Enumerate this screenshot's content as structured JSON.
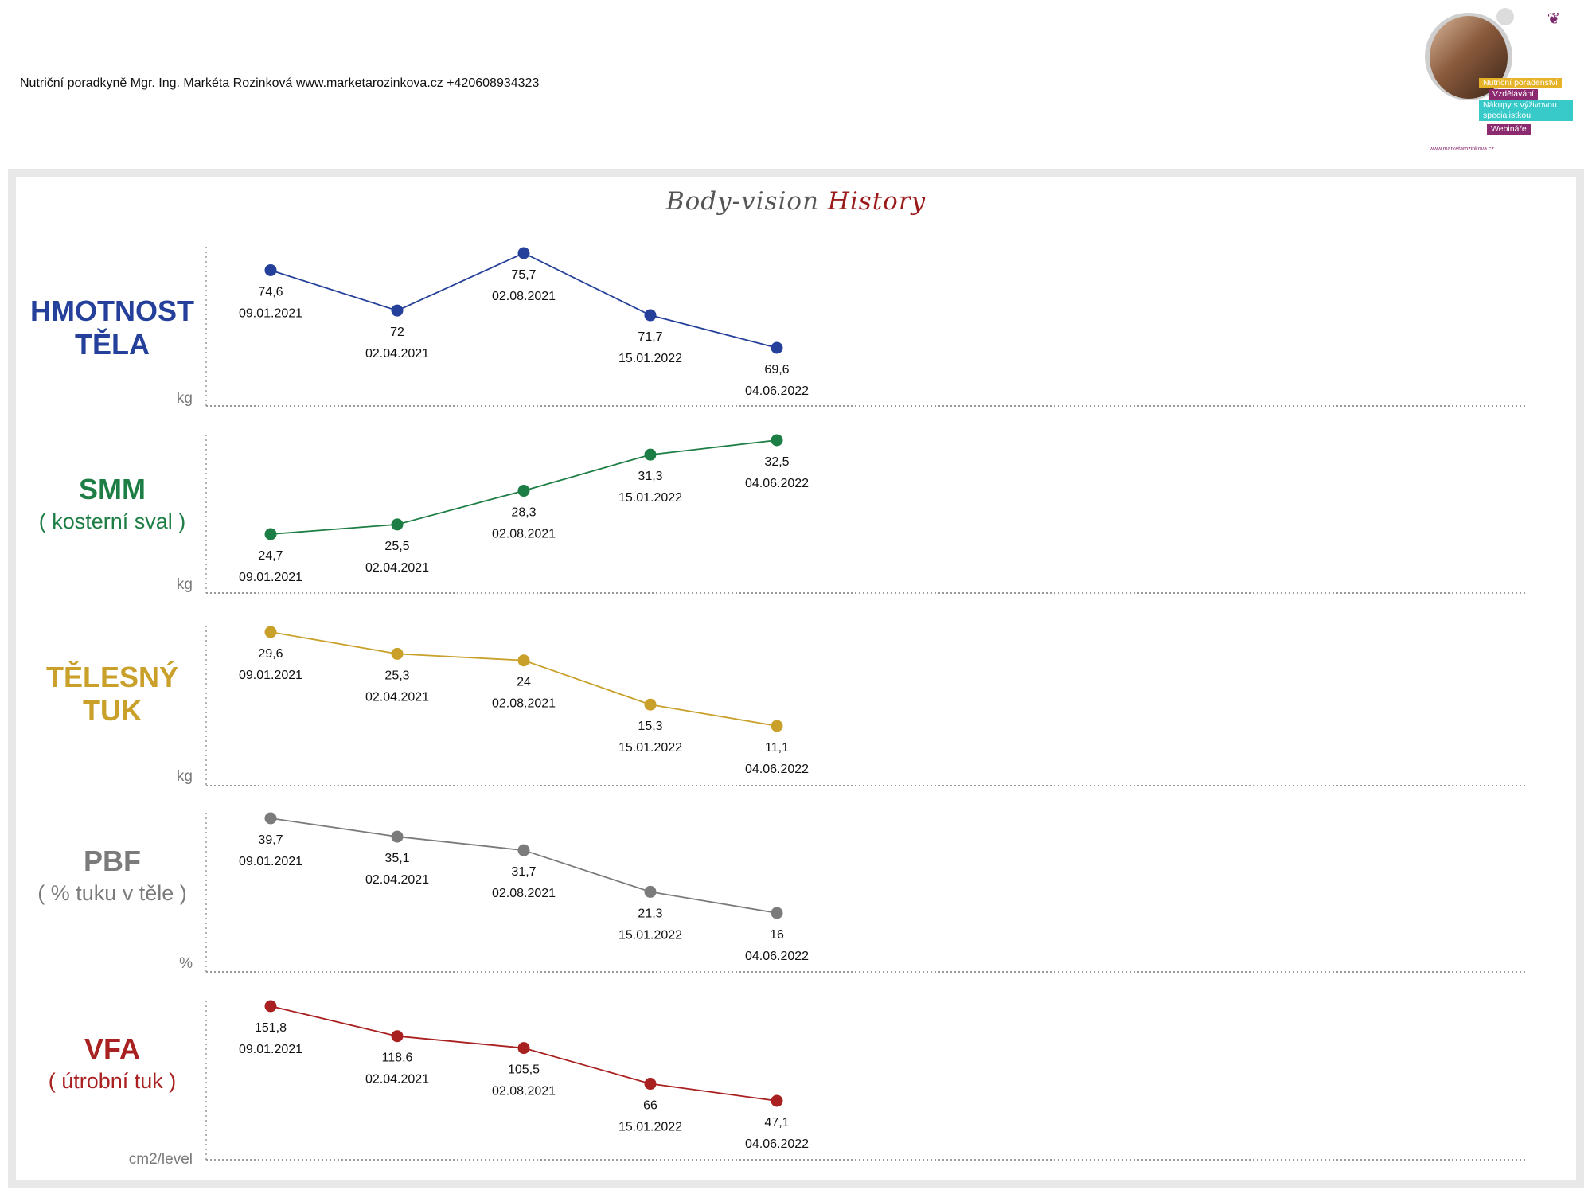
{
  "header": {
    "contact": "Nutriční poradkyně Mgr. Ing. Markéta Rozinková www.marketarozinkova.cz +420608934323"
  },
  "logo": {
    "tags": [
      "Nutriční poradenství",
      "Vzdělávání",
      "Nákupy s výživovou specialistkou",
      "Webináře"
    ],
    "website": "www.marketarozinkova.cz"
  },
  "title": {
    "part1": "Body-vision",
    "part2": "History"
  },
  "chart_data": [
    {
      "type": "line",
      "label_line1": "HMOTNOST",
      "label_line2": "TĚLA",
      "unit": "kg",
      "color": "#24409a",
      "x": [
        "09.01.2021",
        "02.04.2021",
        "02.08.2021",
        "15.01.2022",
        "04.06.2022"
      ],
      "values": [
        74.6,
        72,
        75.7,
        71.7,
        69.6
      ],
      "value_labels": [
        "74,6",
        "72",
        "75,7",
        "71,7",
        "69,6"
      ]
    },
    {
      "type": "line",
      "label_line1": "SMM",
      "label_line2": "( kosterní sval )",
      "unit": "kg",
      "color": "#1d7e45",
      "x": [
        "09.01.2021",
        "02.04.2021",
        "02.08.2021",
        "15.01.2022",
        "04.06.2022"
      ],
      "values": [
        24.7,
        25.5,
        28.3,
        31.3,
        32.5
      ],
      "value_labels": [
        "24,7",
        "25,5",
        "28,3",
        "31,3",
        "32,5"
      ]
    },
    {
      "type": "line",
      "label_line1": "TĚLESNÝ",
      "label_line2": "TUK",
      "unit": "kg",
      "color": "#c9a02a",
      "x": [
        "09.01.2021",
        "02.04.2021",
        "02.08.2021",
        "15.01.2022",
        "04.06.2022"
      ],
      "values": [
        29.6,
        25.3,
        24,
        15.3,
        11.1
      ],
      "value_labels": [
        "29,6",
        "25,3",
        "24",
        "15,3",
        "11,1"
      ]
    },
    {
      "type": "line",
      "label_line1": "PBF",
      "label_line2": "( % tuku v těle )",
      "unit": "%",
      "color": "#7b7b7b",
      "x": [
        "09.01.2021",
        "02.04.2021",
        "02.08.2021",
        "15.01.2022",
        "04.06.2022"
      ],
      "values": [
        39.7,
        35.1,
        31.7,
        21.3,
        16
      ],
      "value_labels": [
        "39,7",
        "35,1",
        "31,7",
        "21,3",
        "16"
      ]
    },
    {
      "type": "line",
      "label_line1": "VFA",
      "label_line2": "( útrobní tuk )",
      "unit": "cm2/level",
      "color": "#a8201f",
      "x": [
        "09.01.2021",
        "02.04.2021",
        "02.08.2021",
        "15.01.2022",
        "04.06.2022"
      ],
      "values": [
        151.8,
        118.6,
        105.5,
        66,
        47.1
      ],
      "value_labels": [
        "151,8",
        "118,6",
        "105,5",
        "66",
        "47,1"
      ]
    }
  ]
}
